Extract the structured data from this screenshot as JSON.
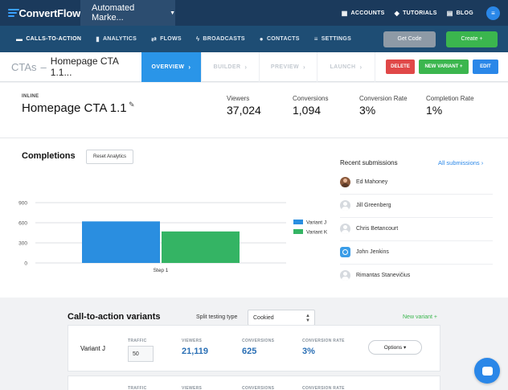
{
  "topnav": {
    "brand": "ConvertFlow",
    "app_select": "Automated Marke...",
    "links": [
      {
        "icon": "grid-icon",
        "label": "ACCOUNTS"
      },
      {
        "icon": "graduation-cap-icon",
        "label": "TUTORIALS"
      },
      {
        "icon": "blog-icon",
        "label": "BLOG"
      }
    ]
  },
  "subnav": {
    "items": [
      {
        "icon": "chat-icon",
        "label": "CALLS-TO-ACTION"
      },
      {
        "icon": "bar-chart-icon",
        "label": "ANALYTICS"
      },
      {
        "icon": "shuffle-icon",
        "label": "FLOWS"
      },
      {
        "icon": "bolt-icon",
        "label": "BROADCASTS"
      },
      {
        "icon": "user-icon",
        "label": "CONTACTS"
      },
      {
        "icon": "settings-icon",
        "label": "SETTINGS"
      }
    ],
    "get_code": "Get Code",
    "create": "Create +"
  },
  "breadcrumb": {
    "root": "CTAs",
    "sep": "–",
    "name": "Homepage CTA 1.1..."
  },
  "steps": [
    "OVERVIEW",
    "BUILDER",
    "PREVIEW",
    "LAUNCH"
  ],
  "actions": {
    "delete": "DELETE",
    "new_variant": "NEW VARIANT +",
    "edit": "EDIT"
  },
  "cta": {
    "tag": "INLINE",
    "title": "Homepage CTA 1.1",
    "stats": [
      {
        "label": "Viewers",
        "value": "37,024"
      },
      {
        "label": "Conversions",
        "value": "1,094"
      },
      {
        "label": "Conversion Rate",
        "value": "3%"
      },
      {
        "label": "Completion Rate",
        "value": "1%"
      }
    ]
  },
  "completions": {
    "title": "Completions",
    "reset_label": "Reset Analytics"
  },
  "chart_data": {
    "type": "bar",
    "categories": [
      "Step 1"
    ],
    "series": [
      {
        "name": "Variant J",
        "values": [
          620
        ],
        "color": "#2a8ee0"
      },
      {
        "name": "Variant K",
        "values": [
          470
        ],
        "color": "#34b464"
      }
    ],
    "yticks": [
      "0",
      "300",
      "600",
      "900"
    ],
    "ylim": [
      0,
      900
    ],
    "grid": true,
    "legend": "right"
  },
  "recent": {
    "title": "Recent submissions",
    "all_link": "All submissions",
    "items": [
      {
        "name": "Ed Mahoney",
        "avatar": "photo"
      },
      {
        "name": "Jill Greenberg",
        "avatar": "default"
      },
      {
        "name": "Chris Betancourt",
        "avatar": "default"
      },
      {
        "name": "John Jenkins",
        "avatar": "blue"
      },
      {
        "name": "Rimantas Stanevičius",
        "avatar": "default"
      }
    ]
  },
  "variants": {
    "title": "Call-to-action variants",
    "split_label": "Split testing type",
    "split_value": "Cookied",
    "new_variant": "New variant +",
    "columns": {
      "traffic": "TRAFFIC",
      "viewers": "VIEWERS",
      "conversions": "CONVERSIONS",
      "rate": "CONVERSION RATE"
    },
    "rows": [
      {
        "name": "Variant J",
        "traffic": "50",
        "viewers": "21,119",
        "conversions": "625",
        "rate": "3%",
        "options": "Options"
      }
    ]
  }
}
